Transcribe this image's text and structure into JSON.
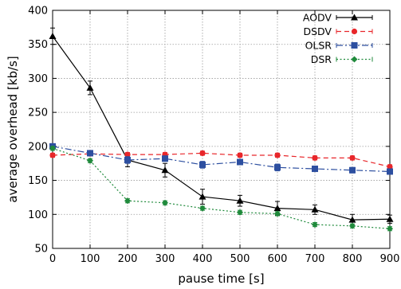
{
  "chart_data": {
    "type": "line",
    "xlabel": "pause time [s]",
    "ylabel": "average overhead [kb/s]",
    "xlim": [
      0,
      900
    ],
    "ylim": [
      50,
      400
    ],
    "xticks": [
      0,
      100,
      200,
      300,
      400,
      500,
      600,
      700,
      800,
      900
    ],
    "yticks": [
      50,
      100,
      150,
      200,
      250,
      300,
      350,
      400
    ],
    "grid": true,
    "legend_position": "top-right",
    "x": [
      0,
      100,
      200,
      300,
      400,
      500,
      600,
      700,
      800,
      900
    ],
    "series": [
      {
        "name": "AODV",
        "color": "#000000",
        "marker": "triangle",
        "dash": "solid",
        "values": [
          362,
          286,
          180,
          165,
          126,
          120,
          109,
          107,
          92,
          93
        ],
        "errors": [
          12,
          10,
          10,
          10,
          11,
          8,
          10,
          7,
          8,
          6
        ]
      },
      {
        "name": "DSDV",
        "color": "#e8262a",
        "marker": "circle",
        "dash": "dashed",
        "values": [
          187,
          189,
          188,
          188,
          190,
          187,
          187,
          183,
          183,
          170
        ],
        "errors": [
          3,
          3,
          3,
          3,
          3,
          3,
          3,
          3,
          3,
          3
        ]
      },
      {
        "name": "OLSR",
        "color": "#2d4fa0",
        "marker": "square",
        "dash": "dashdot",
        "values": [
          200,
          190,
          180,
          182,
          173,
          177,
          169,
          167,
          165,
          163
        ],
        "errors": [
          4,
          4,
          5,
          4,
          5,
          4,
          5,
          4,
          4,
          4
        ]
      },
      {
        "name": "DSR",
        "color": "#1f8a3b",
        "marker": "diamond",
        "dash": "dotted",
        "values": [
          197,
          179,
          120,
          117,
          109,
          103,
          101,
          85,
          83,
          79
        ],
        "errors": [
          3,
          3,
          3,
          3,
          3,
          3,
          3,
          3,
          3,
          3
        ]
      }
    ]
  }
}
